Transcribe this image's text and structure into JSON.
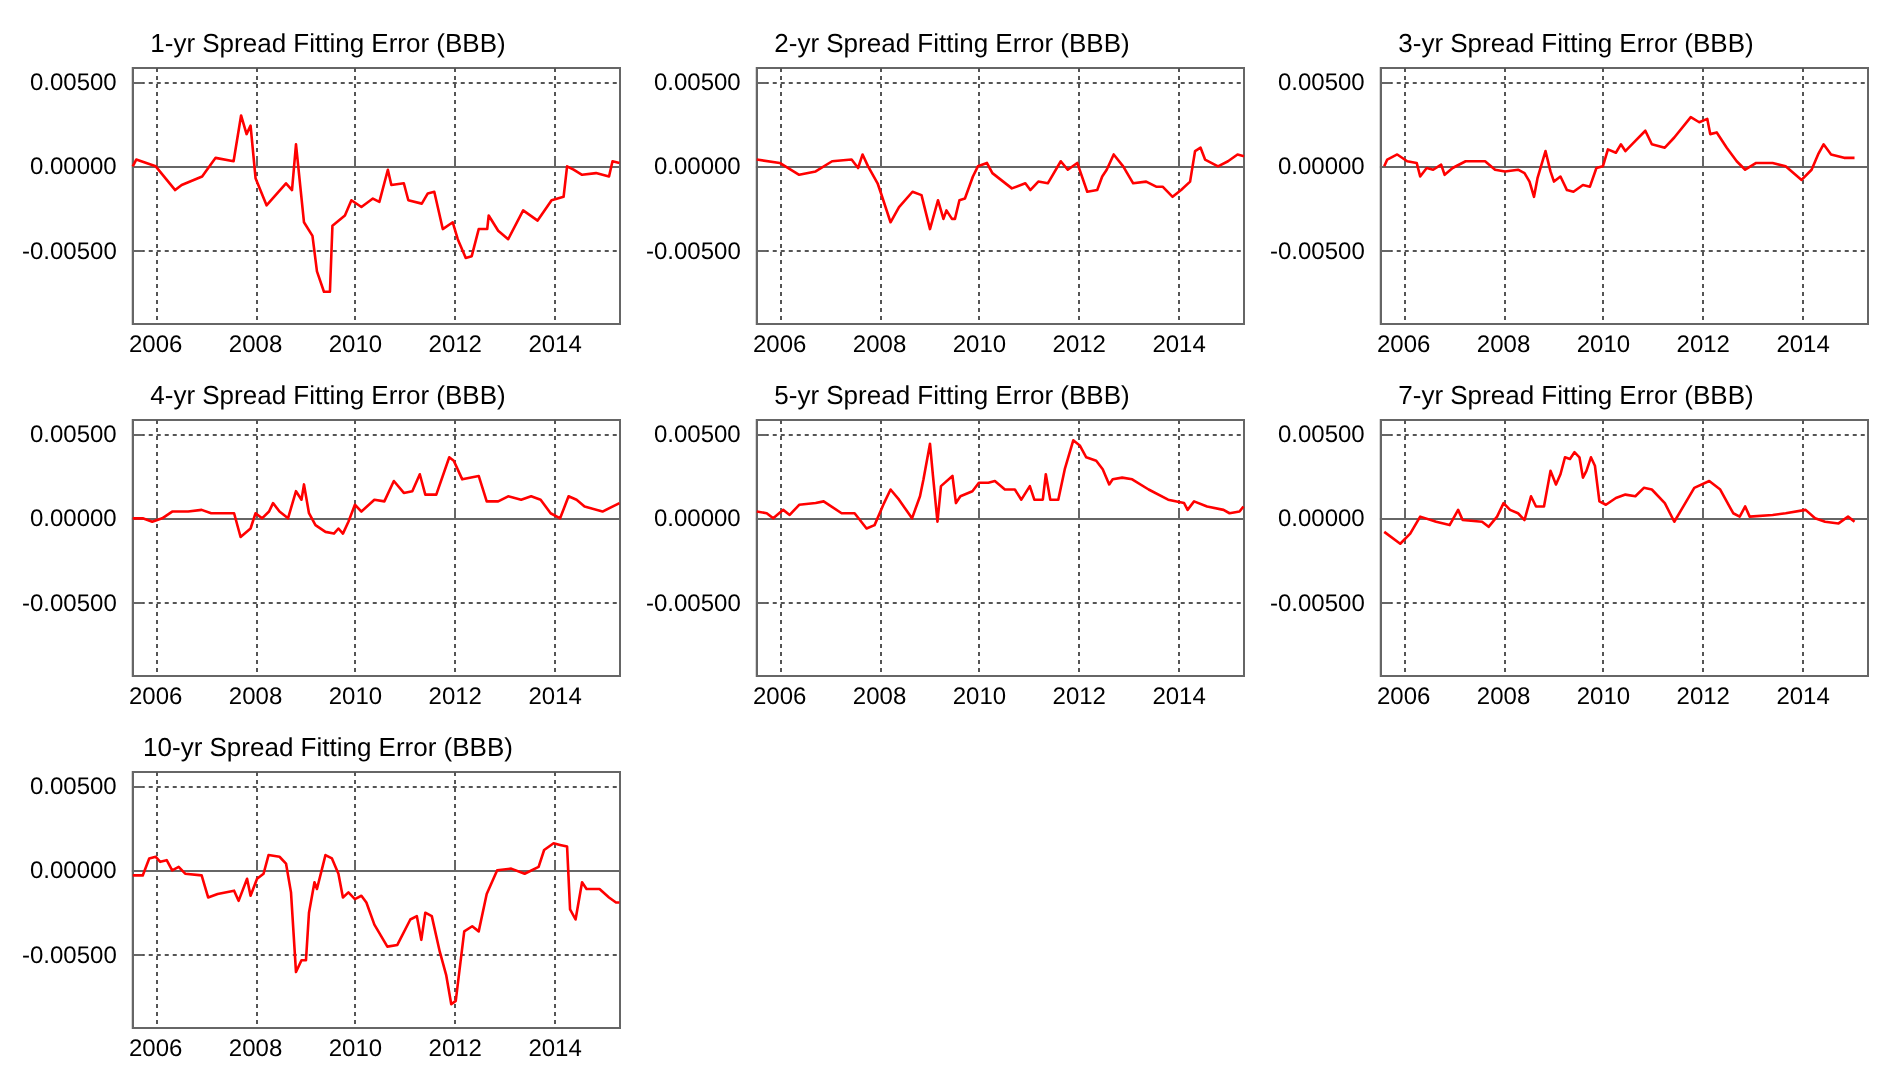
{
  "chart_data": [
    {
      "type": "line",
      "title": "1-yr Spread Fitting Error (BBB)",
      "color": "#ff0000",
      "grid": true,
      "xlim": [
        2005.54,
        2015.3
      ],
      "ylim": [
        -0.0093,
        0.0058
      ],
      "xticks": [
        2006,
        2008,
        2010,
        2012,
        2014
      ],
      "yticks": [
        {
          "value": 0.005,
          "label": "0.00500"
        },
        {
          "value": 0,
          "label": "0.00000"
        },
        {
          "value": -0.005,
          "label": "-0.00500"
        }
      ],
      "x": [
        2005.54,
        2005.61,
        2006,
        2006.39,
        2006.52,
        2006.93,
        2007.2,
        2007.56,
        2007.71,
        2007.82,
        2007.9,
        2008,
        2008.22,
        2008.61,
        2008.73,
        2008.81,
        2008.97,
        2009.14,
        2009.23,
        2009.37,
        2009.49,
        2009.54,
        2009.79,
        2009.92,
        2010.12,
        2010.35,
        2010.48,
        2010.65,
        2010.72,
        2010.97,
        2011.06,
        2011.33,
        2011.45,
        2011.58,
        2011.75,
        2011.95,
        2012.05,
        2012.21,
        2012.33,
        2012.47,
        2012.64,
        2012.67,
        2012.86,
        2013.06,
        2013.36,
        2013.65,
        2013.93,
        2014.17,
        2014.24,
        2014.37,
        2014.54,
        2014.82,
        2015.08,
        2015.15,
        2015.29
      ],
      "values": [
        0.0,
        0.0004,
        0.0,
        -0.0014,
        -0.0011,
        -0.0006,
        0.0005,
        0.0003,
        0.003,
        0.0019,
        0.0024,
        -0.0007,
        -0.0023,
        -0.001,
        -0.0014,
        0.0013,
        -0.0033,
        -0.0041,
        -0.0062,
        -0.0074,
        -0.0074,
        -0.0035,
        -0.0029,
        -0.002,
        -0.0024,
        -0.0019,
        -0.0021,
        -0.0002,
        -0.0011,
        -0.001,
        -0.002,
        -0.0022,
        -0.0016,
        -0.0015,
        -0.0037,
        -0.0033,
        -0.0043,
        -0.0054,
        -0.0053,
        -0.0037,
        -0.0037,
        -0.0029,
        -0.0038,
        -0.0043,
        -0.0026,
        -0.0032,
        -0.002,
        -0.0018,
        0.0,
        -0.0002,
        -0.0005,
        -0.0004,
        -0.0006,
        0.0003,
        0.0002
      ]
    },
    {
      "type": "line",
      "title": "2-yr Spread Fitting Error (BBB)",
      "color": "#ff0000",
      "grid": true,
      "xlim": [
        2005.54,
        2015.3
      ],
      "ylim": [
        -0.0093,
        0.0058
      ],
      "xticks": [
        2006,
        2008,
        2010,
        2012,
        2014
      ],
      "yticks": [
        {
          "value": 0.005,
          "label": "0.00500"
        },
        {
          "value": 0,
          "label": "0.00000"
        },
        {
          "value": -0.005,
          "label": "-0.00500"
        }
      ],
      "x": [
        2005.54,
        2006.0,
        2006.39,
        2006.72,
        2007.05,
        2007.44,
        2007.57,
        2007.66,
        2007.77,
        2007.96,
        2008.03,
        2008.22,
        2008.39,
        2008.66,
        2008.84,
        2009.01,
        2009.17,
        2009.28,
        2009.34,
        2009.45,
        2009.51,
        2009.6,
        2009.71,
        2009.87,
        2009.97,
        2010.15,
        2010.26,
        2010.65,
        2010.92,
        2011.02,
        2011.18,
        2011.37,
        2011.63,
        2011.77,
        2011.96,
        2012.16,
        2012.36,
        2012.46,
        2012.55,
        2012.69,
        2012.88,
        2013.08,
        2013.34,
        2013.54,
        2013.67,
        2013.87,
        2014.04,
        2014.22,
        2014.32,
        2014.43,
        2014.52,
        2014.78,
        2014.98,
        2015.17,
        2015.3
      ],
      "values": [
        0.0004,
        0.0002,
        -0.0005,
        -0.0003,
        0.0003,
        0.0004,
        -0.0001,
        0.0007,
        0.0,
        -0.001,
        -0.0016,
        -0.0033,
        -0.0024,
        -0.0015,
        -0.0017,
        -0.0037,
        -0.002,
        -0.0031,
        -0.0026,
        -0.0031,
        -0.0031,
        -0.002,
        -0.0019,
        -0.0006,
        0.0,
        0.0002,
        -0.0004,
        -0.0013,
        -0.001,
        -0.0014,
        -0.0009,
        -0.001,
        0.0003,
        -0.0002,
        0.0002,
        -0.0015,
        -0.0014,
        -0.0006,
        -0.0002,
        0.0007,
        0.0,
        -0.001,
        -0.0009,
        -0.0012,
        -0.0012,
        -0.0018,
        -0.0014,
        -0.0009,
        0.0009,
        0.0011,
        0.0004,
        0.0,
        0.0003,
        0.0007,
        0.0006
      ]
    },
    {
      "type": "line",
      "title": "3-yr Spread Fitting Error (BBB)",
      "color": "#ff0000",
      "grid": true,
      "xlim": [
        2005.54,
        2015.3
      ],
      "ylim": [
        -0.0093,
        0.0058
      ],
      "xticks": [
        2006,
        2008,
        2010,
        2012,
        2014
      ],
      "yticks": [
        {
          "value": 0.005,
          "label": "0.00500"
        },
        {
          "value": 0,
          "label": "0.00000"
        },
        {
          "value": -0.005,
          "label": "-0.00500"
        }
      ],
      "x": [
        2005.61,
        2005.67,
        2005.87,
        2006.07,
        2006.26,
        2006.33,
        2006.46,
        2006.59,
        2006.75,
        2006.82,
        2006.98,
        2007.24,
        2007.63,
        2007.83,
        2008.03,
        2008.29,
        2008.42,
        2008.52,
        2008.61,
        2008.68,
        2008.84,
        2008.94,
        2009.01,
        2009.14,
        2009.27,
        2009.4,
        2009.59,
        2009.73,
        2009.86,
        2009.99,
        2010.09,
        2010.25,
        2010.35,
        2010.44,
        2010.64,
        2010.84,
        2010.97,
        2011.23,
        2011.42,
        2011.75,
        2011.92,
        2012.08,
        2012.14,
        2012.27,
        2012.47,
        2012.67,
        2012.84,
        2013.06,
        2013.39,
        2013.65,
        2013.97,
        2014.17,
        2014.3,
        2014.41,
        2014.56,
        2014.82,
        2015.03
      ],
      "values": [
        0.0,
        0.0004,
        0.0007,
        0.0003,
        0.0002,
        -0.0006,
        -0.0001,
        -0.0002,
        0.0001,
        -0.0005,
        -0.0001,
        0.0003,
        0.0003,
        -0.0002,
        -0.0003,
        -0.0002,
        -0.0004,
        -0.0009,
        -0.0018,
        -0.0007,
        0.0009,
        -0.0003,
        -0.0009,
        -0.0006,
        -0.0014,
        -0.0015,
        -0.0011,
        -0.0012,
        -0.0001,
        0.0,
        0.001,
        0.0008,
        0.0013,
        0.0009,
        0.0015,
        0.0021,
        0.0013,
        0.0011,
        0.0017,
        0.0029,
        0.0026,
        0.0028,
        0.0019,
        0.002,
        0.0011,
        0.0003,
        -0.0002,
        0.0002,
        0.0002,
        0.0,
        -0.0008,
        -0.0002,
        0.0007,
        0.0013,
        0.0007,
        0.0005,
        0.0005
      ]
    },
    {
      "type": "line",
      "title": "4-yr Spread Fitting Error (BBB)",
      "color": "#ff0000",
      "grid": true,
      "xlim": [
        2005.54,
        2015.3
      ],
      "ylim": [
        -0.0093,
        0.0058
      ],
      "xticks": [
        2006,
        2008,
        2010,
        2012,
        2014
      ],
      "yticks": [
        {
          "value": 0.005,
          "label": "0.00500"
        },
        {
          "value": 0,
          "label": "0.00000"
        },
        {
          "value": -0.005,
          "label": "-0.00500"
        }
      ],
      "x": [
        2005.54,
        2005.74,
        2005.93,
        2006.13,
        2006.33,
        2006.65,
        2006.92,
        2007.11,
        2007.57,
        2007.7,
        2007.9,
        2008.0,
        2008.13,
        2008.27,
        2008.35,
        2008.48,
        2008.65,
        2008.81,
        2008.92,
        2008.97,
        2009.07,
        2009.2,
        2009.4,
        2009.57,
        2009.66,
        2009.75,
        2009.86,
        2009.99,
        2010.12,
        2010.38,
        2010.58,
        2010.77,
        2010.97,
        2011.14,
        2011.29,
        2011.4,
        2011.62,
        2011.88,
        2011.97,
        2012.14,
        2012.47,
        2012.63,
        2012.86,
        2013.06,
        2013.32,
        2013.52,
        2013.71,
        2013.91,
        2014.1,
        2014.27,
        2014.43,
        2014.59,
        2014.95,
        2015.29
      ],
      "values": [
        0.0,
        0.0,
        -0.0002,
        0.0,
        0.0004,
        0.0004,
        0.0005,
        0.0003,
        0.0003,
        -0.0011,
        -0.0006,
        0.0003,
        0.0,
        0.0004,
        0.0009,
        0.0004,
        0.0,
        0.0016,
        0.0011,
        0.002,
        0.0003,
        -0.0004,
        -0.0008,
        -0.0009,
        -0.0006,
        -0.0009,
        -0.0002,
        0.0008,
        0.0004,
        0.0011,
        0.001,
        0.0022,
        0.0015,
        0.0016,
        0.0026,
        0.0014,
        0.0014,
        0.0036,
        0.0034,
        0.0023,
        0.0025,
        0.001,
        0.001,
        0.0013,
        0.0011,
        0.0013,
        0.0011,
        0.0003,
        0.0,
        0.0013,
        0.0011,
        0.0007,
        0.0004,
        0.0009
      ]
    },
    {
      "type": "line",
      "title": "5-yr Spread Fitting Error (BBB)",
      "color": "#ff0000",
      "grid": true,
      "xlim": [
        2005.54,
        2015.3
      ],
      "ylim": [
        -0.0093,
        0.0058
      ],
      "xticks": [
        2006,
        2008,
        2010,
        2012,
        2014
      ],
      "yticks": [
        {
          "value": 0.005,
          "label": "0.00500"
        },
        {
          "value": 0,
          "label": "0.00000"
        },
        {
          "value": -0.005,
          "label": "-0.00500"
        }
      ],
      "x": [
        2005.54,
        2005.74,
        2005.87,
        2006.07,
        2006.2,
        2006.39,
        2006.72,
        2006.88,
        2007.24,
        2007.5,
        2007.74,
        2007.9,
        2008.09,
        2008.22,
        2008.39,
        2008.65,
        2008.81,
        2008.88,
        2009.01,
        2009.07,
        2009.16,
        2009.23,
        2009.46,
        2009.53,
        2009.62,
        2009.86,
        2009.99,
        2010.18,
        2010.31,
        2010.51,
        2010.71,
        2010.84,
        2011.01,
        2011.1,
        2011.27,
        2011.33,
        2011.42,
        2011.58,
        2011.71,
        2011.88,
        2012.01,
        2012.14,
        2012.34,
        2012.47,
        2012.6,
        2012.67,
        2012.86,
        2013.06,
        2013.39,
        2013.78,
        2014.1,
        2014.17,
        2014.3,
        2014.56,
        2014.89,
        2015.01,
        2015.21,
        2015.29
      ],
      "values": [
        0.0004,
        0.0003,
        0.0,
        0.0005,
        0.0002,
        0.0008,
        0.0009,
        0.001,
        0.0003,
        0.0003,
        -0.0006,
        -0.0004,
        0.0009,
        0.0017,
        0.0011,
        0.0,
        0.0013,
        0.0023,
        0.0044,
        0.0025,
        -0.0002,
        0.0019,
        0.0025,
        0.0009,
        0.0013,
        0.0016,
        0.0021,
        0.0021,
        0.0022,
        0.0017,
        0.0017,
        0.0011,
        0.0019,
        0.0011,
        0.0011,
        0.0026,
        0.0011,
        0.0011,
        0.0029,
        0.0046,
        0.0043,
        0.0036,
        0.0034,
        0.0029,
        0.002,
        0.0023,
        0.0024,
        0.0023,
        0.0017,
        0.0011,
        0.0009,
        0.0005,
        0.001,
        0.0007,
        0.0005,
        0.0003,
        0.0004,
        0.0007
      ]
    },
    {
      "type": "line",
      "title": "7-yr Spread Fitting Error (BBB)",
      "color": "#ff0000",
      "grid": true,
      "xlim": [
        2005.54,
        2015.3
      ],
      "ylim": [
        -0.0093,
        0.0058
      ],
      "xticks": [
        2006,
        2008,
        2010,
        2012,
        2014
      ],
      "yticks": [
        {
          "value": 0.005,
          "label": "0.00500"
        },
        {
          "value": 0,
          "label": "0.00000"
        },
        {
          "value": -0.005,
          "label": "-0.00500"
        }
      ],
      "x": [
        2005.61,
        2005.93,
        2006.13,
        2006.33,
        2006.65,
        2006.92,
        2007.09,
        2007.18,
        2007.57,
        2007.7,
        2007.87,
        2008.0,
        2008.13,
        2008.29,
        2008.42,
        2008.55,
        2008.65,
        2008.81,
        2008.94,
        2009.05,
        2009.14,
        2009.23,
        2009.33,
        2009.42,
        2009.52,
        2009.59,
        2009.66,
        2009.75,
        2009.83,
        2009.92,
        2010.05,
        2010.25,
        2010.44,
        2010.64,
        2010.81,
        2010.97,
        2011.23,
        2011.42,
        2011.56,
        2011.82,
        2012.12,
        2012.34,
        2012.6,
        2012.73,
        2012.84,
        2012.93,
        2013.39,
        2013.65,
        2014.05,
        2014.24,
        2014.44,
        2014.71,
        2014.9,
        2015.03
      ],
      "values": [
        -0.0008,
        -0.0015,
        -0.0009,
        0.0001,
        -0.0002,
        -0.0004,
        0.0005,
        -0.0001,
        -0.0002,
        -0.0005,
        0.0001,
        0.0009,
        0.0005,
        0.0003,
        -0.0001,
        0.0013,
        0.0007,
        0.0007,
        0.0028,
        0.002,
        0.0026,
        0.0036,
        0.0035,
        0.0039,
        0.0036,
        0.0024,
        0.0028,
        0.0036,
        0.0031,
        0.001,
        0.0008,
        0.0012,
        0.0014,
        0.0013,
        0.0018,
        0.0017,
        0.0009,
        -0.0002,
        0.0005,
        0.0018,
        0.0022,
        0.0017,
        0.0003,
        0.0001,
        0.0007,
        0.0001,
        0.0002,
        0.0003,
        0.0005,
        0.0,
        -0.0002,
        -0.0003,
        0.0001,
        -0.0002
      ]
    },
    {
      "type": "line",
      "title": "10-yr Spread Fitting Error (BBB)",
      "color": "#ff0000",
      "grid": true,
      "xlim": [
        2005.54,
        2015.3
      ],
      "ylim": [
        -0.0093,
        0.0058
      ],
      "xticks": [
        2006,
        2008,
        2010,
        2012,
        2014
      ],
      "yticks": [
        {
          "value": 0.005,
          "label": "0.00500"
        },
        {
          "value": 0,
          "label": "0.00000"
        },
        {
          "value": -0.005,
          "label": "-0.00500"
        }
      ],
      "x": [
        2005.54,
        2005.74,
        2005.87,
        2006.0,
        2006.09,
        2006.22,
        2006.33,
        2006.46,
        2006.59,
        2006.92,
        2007.05,
        2007.24,
        2007.57,
        2007.66,
        2007.83,
        2007.9,
        2008.03,
        2008.16,
        2008.26,
        2008.48,
        2008.61,
        2008.71,
        2008.81,
        2008.92,
        2009.01,
        2009.07,
        2009.18,
        2009.23,
        2009.4,
        2009.53,
        2009.66,
        2009.75,
        2009.86,
        2009.99,
        2010.12,
        2010.22,
        2010.38,
        2010.64,
        2010.84,
        2011.1,
        2011.23,
        2011.32,
        2011.4,
        2011.53,
        2011.69,
        2011.82,
        2011.92,
        2012.01,
        2012.18,
        2012.34,
        2012.47,
        2012.63,
        2012.84,
        2013.12,
        2013.39,
        2013.67,
        2013.78,
        2013.97,
        2014.1,
        2014.24,
        2014.3,
        2014.41,
        2014.54,
        2014.63,
        2014.89,
        2015.08,
        2015.22,
        2015.29
      ],
      "values": [
        -0.0003,
        -0.0003,
        0.0007,
        0.0008,
        0.0005,
        0.0006,
        0.0,
        0.0002,
        -0.0002,
        -0.0003,
        -0.0016,
        -0.0014,
        -0.0012,
        -0.0018,
        -0.0005,
        -0.0015,
        -0.0005,
        -0.0002,
        0.0009,
        0.0008,
        0.0004,
        -0.0013,
        -0.006,
        -0.0053,
        -0.0053,
        -0.0025,
        -0.0007,
        -0.0011,
        0.0009,
        0.0007,
        -0.0002,
        -0.0016,
        -0.0013,
        -0.0017,
        -0.0015,
        -0.0019,
        -0.0032,
        -0.0045,
        -0.0044,
        -0.0029,
        -0.0027,
        -0.0041,
        -0.0025,
        -0.0027,
        -0.0048,
        -0.0062,
        -0.0079,
        -0.0077,
        -0.0036,
        -0.0033,
        -0.0036,
        -0.0014,
        0.0,
        0.0001,
        -0.0002,
        0.0002,
        0.0012,
        0.0016,
        0.0015,
        0.0014,
        -0.0023,
        -0.0029,
        -0.0007,
        -0.0011,
        -0.0011,
        -0.0016,
        -0.0019,
        -0.0019
      ]
    }
  ]
}
